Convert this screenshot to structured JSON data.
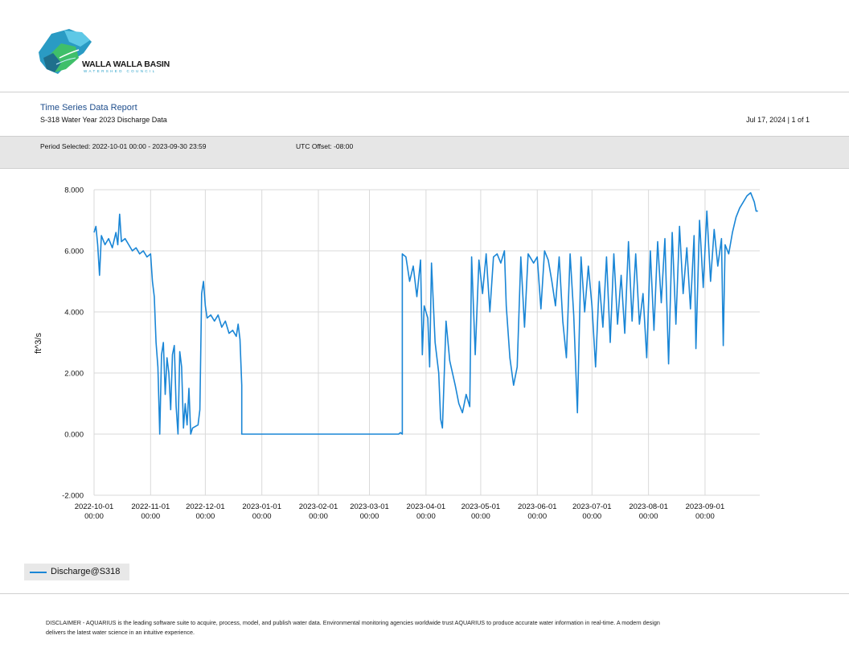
{
  "logo": {
    "name": "WALLA WALLA BASIN",
    "subname": "WATERSHED COUNCIL"
  },
  "report": {
    "title": "Time Series Data Report",
    "subtitle": "S-318 Water Year 2023 Discharge Data",
    "date_page": "Jul 17, 2024 | 1 of 1",
    "period": "Period Selected: 2022-10-01 00:00 - 2023-09-30 23:59",
    "utc_offset": "UTC Offset: -08:00"
  },
  "colors": {
    "series": "#1a86d6",
    "title": "#1f4e8c",
    "band": "#e6e6e6"
  },
  "chart_data": {
    "type": "line",
    "ylabel": "ft^3/s",
    "ylim": [
      -2.0,
      8.0
    ],
    "xlim": [
      "2022-10-01",
      "2023-09-30"
    ],
    "y_ticks": [
      "8.000",
      "6.000",
      "4.000",
      "2.000",
      "0.000",
      "-2.000"
    ],
    "y_tick_values": [
      8,
      6,
      4,
      2,
      0,
      -2
    ],
    "x_ticks": [
      {
        "date": "2022-10-01",
        "label1": "2022-10-01",
        "label2": "00:00"
      },
      {
        "date": "2022-11-01",
        "label1": "2022-11-01",
        "label2": "00:00"
      },
      {
        "date": "2022-12-01",
        "label1": "2022-12-01",
        "label2": "00:00"
      },
      {
        "date": "2023-01-01",
        "label1": "2023-01-01",
        "label2": "00:00"
      },
      {
        "date": "2023-02-01",
        "label1": "2023-02-01",
        "label2": "00:00"
      },
      {
        "date": "2023-03-01",
        "label1": "2023-03-01",
        "label2": "00:00"
      },
      {
        "date": "2023-04-01",
        "label1": "2023-04-01",
        "label2": "00:00"
      },
      {
        "date": "2023-05-01",
        "label1": "2023-05-01",
        "label2": "00:00"
      },
      {
        "date": "2023-06-01",
        "label1": "2023-06-01",
        "label2": "00:00"
      },
      {
        "date": "2023-07-01",
        "label1": "2023-07-01",
        "label2": "00:00"
      },
      {
        "date": "2023-08-01",
        "label1": "2023-08-01",
        "label2": "00:00"
      },
      {
        "date": "2023-09-01",
        "label1": "2023-09-01",
        "label2": "00:00"
      }
    ],
    "grid": true,
    "legend": "bottom-left",
    "series": [
      {
        "name": "Discharge@S318",
        "points": [
          [
            "2022-10-01",
            6.6
          ],
          [
            "2022-10-02",
            6.8
          ],
          [
            "2022-10-03",
            6.2
          ],
          [
            "2022-10-04",
            5.2
          ],
          [
            "2022-10-05",
            6.5
          ],
          [
            "2022-10-07",
            6.2
          ],
          [
            "2022-10-09",
            6.4
          ],
          [
            "2022-10-11",
            6.1
          ],
          [
            "2022-10-13",
            6.6
          ],
          [
            "2022-10-14",
            6.2
          ],
          [
            "2022-10-15",
            7.2
          ],
          [
            "2022-10-16",
            6.3
          ],
          [
            "2022-10-18",
            6.4
          ],
          [
            "2022-10-20",
            6.2
          ],
          [
            "2022-10-22",
            6.0
          ],
          [
            "2022-10-24",
            6.1
          ],
          [
            "2022-10-26",
            5.9
          ],
          [
            "2022-10-28",
            6.0
          ],
          [
            "2022-10-30",
            5.8
          ],
          [
            "2022-11-01",
            5.9
          ],
          [
            "2022-11-02",
            5.0
          ],
          [
            "2022-11-03",
            4.5
          ],
          [
            "2022-11-04",
            3.0
          ],
          [
            "2022-11-05",
            2.2
          ],
          [
            "2022-11-06",
            0.0
          ],
          [
            "2022-11-07",
            2.6
          ],
          [
            "2022-11-08",
            3.0
          ],
          [
            "2022-11-09",
            1.3
          ],
          [
            "2022-11-10",
            2.5
          ],
          [
            "2022-11-11",
            2.0
          ],
          [
            "2022-11-12",
            0.8
          ],
          [
            "2022-11-13",
            2.6
          ],
          [
            "2022-11-14",
            2.9
          ],
          [
            "2022-11-15",
            0.9
          ],
          [
            "2022-11-16",
            0.0
          ],
          [
            "2022-11-17",
            2.7
          ],
          [
            "2022-11-18",
            2.2
          ],
          [
            "2022-11-19",
            0.2
          ],
          [
            "2022-11-20",
            1.0
          ],
          [
            "2022-11-21",
            0.3
          ],
          [
            "2022-11-22",
            1.5
          ],
          [
            "2022-11-23",
            0.0
          ],
          [
            "2022-11-24",
            0.2
          ],
          [
            "2022-11-27",
            0.3
          ],
          [
            "2022-11-28",
            0.8
          ],
          [
            "2022-11-29",
            4.6
          ],
          [
            "2022-11-30",
            5.0
          ],
          [
            "2022-12-01",
            4.2
          ],
          [
            "2022-12-02",
            3.8
          ],
          [
            "2022-12-04",
            3.9
          ],
          [
            "2022-12-06",
            3.7
          ],
          [
            "2022-12-08",
            3.9
          ],
          [
            "2022-12-10",
            3.5
          ],
          [
            "2022-12-12",
            3.7
          ],
          [
            "2022-12-14",
            3.3
          ],
          [
            "2022-12-16",
            3.4
          ],
          [
            "2022-12-18",
            3.2
          ],
          [
            "2022-12-19",
            3.6
          ],
          [
            "2022-12-20",
            3.1
          ],
          [
            "2022-12-21",
            1.6
          ],
          [
            "2022-12-21",
            0.0
          ],
          [
            "2023-01-10",
            0.0
          ],
          [
            "2023-02-01",
            0.0
          ],
          [
            "2023-03-01",
            0.0
          ],
          [
            "2023-03-17",
            0.0
          ],
          [
            "2023-03-18",
            0.05
          ],
          [
            "2023-03-19",
            0.0
          ],
          [
            "2023-03-19",
            5.9
          ],
          [
            "2023-03-21",
            5.8
          ],
          [
            "2023-03-23",
            5.0
          ],
          [
            "2023-03-25",
            5.5
          ],
          [
            "2023-03-27",
            4.5
          ],
          [
            "2023-03-29",
            5.7
          ],
          [
            "2023-03-30",
            2.6
          ],
          [
            "2023-03-31",
            4.2
          ],
          [
            "2023-04-02",
            3.8
          ],
          [
            "2023-04-03",
            2.2
          ],
          [
            "2023-04-04",
            5.6
          ],
          [
            "2023-04-06",
            3.0
          ],
          [
            "2023-04-08",
            2.0
          ],
          [
            "2023-04-09",
            0.5
          ],
          [
            "2023-04-10",
            0.2
          ],
          [
            "2023-04-12",
            3.7
          ],
          [
            "2023-04-14",
            2.4
          ],
          [
            "2023-04-17",
            1.6
          ],
          [
            "2023-04-19",
            1.0
          ],
          [
            "2023-04-21",
            0.7
          ],
          [
            "2023-04-23",
            1.3
          ],
          [
            "2023-04-25",
            0.9
          ],
          [
            "2023-04-26",
            5.8
          ],
          [
            "2023-04-28",
            2.6
          ],
          [
            "2023-04-30",
            5.7
          ],
          [
            "2023-05-02",
            4.6
          ],
          [
            "2023-05-04",
            5.9
          ],
          [
            "2023-05-06",
            4.0
          ],
          [
            "2023-05-08",
            5.8
          ],
          [
            "2023-05-10",
            5.9
          ],
          [
            "2023-05-12",
            5.6
          ],
          [
            "2023-05-14",
            6.0
          ],
          [
            "2023-05-15",
            4.2
          ],
          [
            "2023-05-17",
            2.5
          ],
          [
            "2023-05-19",
            1.6
          ],
          [
            "2023-05-21",
            2.2
          ],
          [
            "2023-05-23",
            5.8
          ],
          [
            "2023-05-25",
            3.5
          ],
          [
            "2023-05-27",
            5.9
          ],
          [
            "2023-05-30",
            5.6
          ],
          [
            "2023-06-01",
            5.8
          ],
          [
            "2023-06-03",
            4.1
          ],
          [
            "2023-06-05",
            6.0
          ],
          [
            "2023-06-07",
            5.7
          ],
          [
            "2023-06-09",
            5.0
          ],
          [
            "2023-06-11",
            4.2
          ],
          [
            "2023-06-13",
            5.8
          ],
          [
            "2023-06-15",
            3.7
          ],
          [
            "2023-06-17",
            2.5
          ],
          [
            "2023-06-19",
            5.9
          ],
          [
            "2023-06-21",
            3.9
          ],
          [
            "2023-06-23",
            0.7
          ],
          [
            "2023-06-25",
            5.8
          ],
          [
            "2023-06-27",
            4.0
          ],
          [
            "2023-06-29",
            5.5
          ],
          [
            "2023-07-01",
            4.2
          ],
          [
            "2023-07-03",
            2.2
          ],
          [
            "2023-07-05",
            5.0
          ],
          [
            "2023-07-07",
            3.5
          ],
          [
            "2023-07-09",
            5.8
          ],
          [
            "2023-07-11",
            3.0
          ],
          [
            "2023-07-13",
            5.9
          ],
          [
            "2023-07-15",
            3.6
          ],
          [
            "2023-07-17",
            5.2
          ],
          [
            "2023-07-19",
            3.3
          ],
          [
            "2023-07-21",
            6.3
          ],
          [
            "2023-07-23",
            3.7
          ],
          [
            "2023-07-25",
            5.9
          ],
          [
            "2023-07-27",
            3.6
          ],
          [
            "2023-07-29",
            4.6
          ],
          [
            "2023-07-31",
            2.5
          ],
          [
            "2023-08-02",
            6.0
          ],
          [
            "2023-08-04",
            3.4
          ],
          [
            "2023-08-06",
            6.3
          ],
          [
            "2023-08-08",
            4.3
          ],
          [
            "2023-08-10",
            6.4
          ],
          [
            "2023-08-12",
            2.3
          ],
          [
            "2023-08-14",
            6.6
          ],
          [
            "2023-08-16",
            3.6
          ],
          [
            "2023-08-18",
            6.8
          ],
          [
            "2023-08-20",
            4.6
          ],
          [
            "2023-08-22",
            6.1
          ],
          [
            "2023-08-24",
            4.1
          ],
          [
            "2023-08-26",
            6.5
          ],
          [
            "2023-08-27",
            2.8
          ],
          [
            "2023-08-29",
            7.0
          ],
          [
            "2023-08-31",
            4.8
          ],
          [
            "2023-09-02",
            7.3
          ],
          [
            "2023-09-04",
            5.0
          ],
          [
            "2023-09-06",
            6.7
          ],
          [
            "2023-09-08",
            5.5
          ],
          [
            "2023-09-10",
            6.4
          ],
          [
            "2023-09-11",
            2.9
          ],
          [
            "2023-09-12",
            6.2
          ],
          [
            "2023-09-14",
            5.9
          ],
          [
            "2023-09-16",
            6.6
          ],
          [
            "2023-09-18",
            7.1
          ],
          [
            "2023-09-20",
            7.4
          ],
          [
            "2023-09-22",
            7.6
          ],
          [
            "2023-09-24",
            7.8
          ],
          [
            "2023-09-26",
            7.9
          ],
          [
            "2023-09-28",
            7.6
          ],
          [
            "2023-09-29",
            7.3
          ],
          [
            "2023-09-30",
            7.3
          ]
        ]
      }
    ]
  },
  "disclaimer": "DISCLAIMER - AQUARIUS is the leading software suite to acquire, process, model, and publish water data. Environmental monitoring agencies worldwide trust AQUARIUS to produce accurate water information in real-time. A modern design delivers the latest water science in an intuitive experience."
}
